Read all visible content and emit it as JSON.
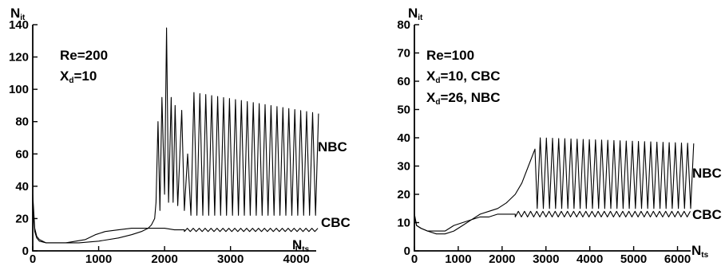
{
  "chart_data": [
    {
      "type": "line",
      "xlabel": "N",
      "xlabel_sub": "ts",
      "ylabel": "N",
      "ylabel_sub": "it",
      "xlim": [
        0,
        4300
      ],
      "ylim": [
        0,
        140
      ],
      "xticks": [
        "0",
        "1000",
        "2000",
        "3000",
        "4000"
      ],
      "yticks": [
        "0",
        "20",
        "40",
        "60",
        "80",
        "100",
        "120",
        "140"
      ],
      "annotations": [
        {
          "text": "Re=200"
        },
        {
          "text": "X",
          "sub": "d",
          "rest": "=10"
        }
      ],
      "series": [
        {
          "name": "NBC",
          "x": [
            0,
            30,
            60,
            100,
            200,
            400,
            700,
            1000,
            1300,
            1500,
            1650,
            1750,
            1800,
            1850,
            1870,
            1900,
            1930,
            1960,
            2000,
            2030,
            2060,
            2100,
            2130,
            2160,
            2200,
            2260,
            2300,
            2350
          ],
          "y": [
            28,
            12,
            8,
            6,
            5,
            5,
            5,
            6,
            8,
            10,
            12,
            14,
            16,
            20,
            30,
            80,
            25,
            95,
            35,
            138,
            30,
            95,
            30,
            90,
            28,
            87,
            25,
            60
          ],
          "oscillation": {
            "x_start": 2400,
            "x_end": 4250,
            "period": 90,
            "min": 22,
            "max_start": 98,
            "max_end": 85
          }
        },
        {
          "name": "CBC",
          "x": [
            0,
            30,
            60,
            100,
            200,
            500,
            800,
            950,
            1100,
            1300,
            1500,
            1800,
            2000,
            2150,
            2300
          ],
          "y": [
            35,
            14,
            9,
            7,
            5,
            5,
            7,
            10,
            12,
            13,
            14,
            14,
            14,
            13,
            13
          ],
          "oscillation": {
            "x_start": 2300,
            "x_end": 4250,
            "period": 90,
            "min": 12,
            "max_start": 14,
            "max_end": 14
          }
        }
      ]
    },
    {
      "type": "line",
      "xlabel": "N",
      "xlabel_sub": "ts",
      "ylabel": "N",
      "ylabel_sub": "it",
      "xlim": [
        0,
        6300
      ],
      "ylim": [
        0,
        80
      ],
      "xticks": [
        "0",
        "1000",
        "2000",
        "3000",
        "4000",
        "5000",
        "6000"
      ],
      "yticks": [
        "0",
        "10",
        "20",
        "30",
        "40",
        "50",
        "60",
        "70",
        "80"
      ],
      "annotations": [
        {
          "text": "Re=100"
        },
        {
          "text": "X",
          "sub": "d",
          "rest": "=10, CBC"
        },
        {
          "text": "X",
          "sub": "d",
          "rest": "=26, NBC"
        }
      ],
      "series": [
        {
          "name": "NBC",
          "x": [
            0,
            50,
            150,
            300,
            500,
            700,
            900,
            1100,
            1300,
            1500,
            1700,
            1900,
            2100,
            2300,
            2450,
            2600,
            2750
          ],
          "y": [
            13,
            9,
            8,
            7,
            6,
            6,
            7,
            9,
            11,
            13,
            14,
            15,
            17,
            20,
            24,
            30,
            36
          ],
          "oscillation": {
            "x_start": 2800,
            "x_end": 6250,
            "period": 140,
            "min": 15,
            "max_start": 40,
            "max_end": 38
          }
        },
        {
          "name": "CBC",
          "x": [
            0,
            50,
            150,
            300,
            500,
            700,
            900,
            1100,
            1300,
            1500,
            1700,
            1900,
            2100,
            2300
          ],
          "y": [
            13,
            9,
            8,
            7,
            7,
            7,
            9,
            10,
            11,
            12,
            12,
            13,
            13,
            13
          ],
          "oscillation": {
            "x_start": 2300,
            "x_end": 6250,
            "period": 140,
            "min": 12,
            "max_start": 14,
            "max_end": 14
          }
        }
      ]
    }
  ]
}
